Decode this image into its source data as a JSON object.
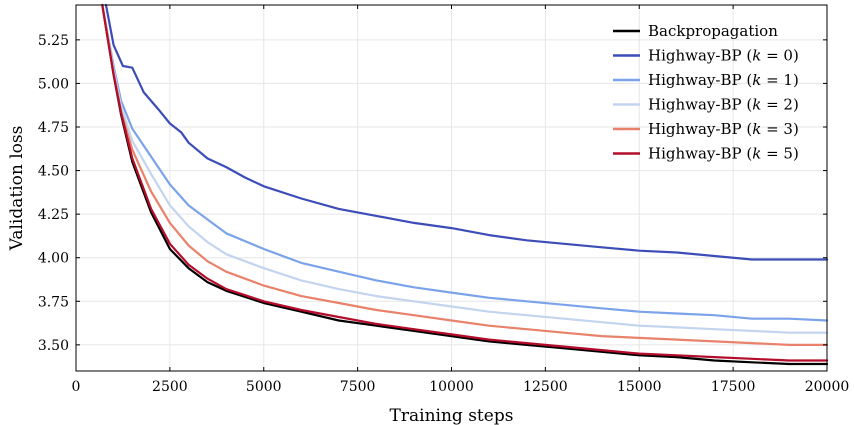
{
  "chart_data": {
    "type": "line",
    "title": "",
    "xlabel": "Training steps",
    "ylabel": "Validation loss",
    "xlim": [
      0,
      20000
    ],
    "ylim": [
      3.35,
      5.45
    ],
    "xticks": [
      0,
      2500,
      5000,
      7500,
      10000,
      12500,
      15000,
      17500,
      20000
    ],
    "yticks": [
      3.5,
      3.75,
      4.0,
      4.25,
      4.5,
      4.75,
      5.0,
      5.25
    ],
    "xtick_labels": [
      "0",
      "2500",
      "5000",
      "7500",
      "10000",
      "12500",
      "15000",
      "17500",
      "20000"
    ],
    "ytick_labels": [
      "3.50",
      "3.75",
      "4.00",
      "4.25",
      "4.50",
      "4.75",
      "5.00",
      "5.25"
    ],
    "grid": true,
    "legend_position": "top-right",
    "series": [
      {
        "name": "Backpropagation",
        "color": "#000000",
        "x": [
          700,
          1000,
          1200,
          1500,
          2000,
          2500,
          3000,
          3500,
          4000,
          5000,
          6000,
          7000,
          8000,
          9000,
          10000,
          11000,
          12000,
          13000,
          14000,
          15000,
          16000,
          17000,
          18000,
          19000,
          20000
        ],
        "y": [
          5.45,
          5.05,
          4.82,
          4.55,
          4.26,
          4.05,
          3.94,
          3.86,
          3.81,
          3.74,
          3.69,
          3.64,
          3.61,
          3.58,
          3.55,
          3.52,
          3.5,
          3.48,
          3.46,
          3.44,
          3.43,
          3.41,
          3.4,
          3.39,
          3.39
        ]
      },
      {
        "name": "Highway-BP (k = 0)",
        "color": "#3c4db8",
        "x": [
          800,
          1000,
          1250,
          1500,
          1800,
          2200,
          2500,
          2800,
          3000,
          3500,
          4000,
          4500,
          5000,
          6000,
          7000,
          8000,
          9000,
          10000,
          11000,
          12000,
          13000,
          14000,
          15000,
          16000,
          17000,
          18000,
          19000,
          20000
        ],
        "y": [
          5.45,
          5.22,
          5.1,
          5.09,
          4.95,
          4.85,
          4.77,
          4.72,
          4.66,
          4.57,
          4.52,
          4.46,
          4.41,
          4.34,
          4.28,
          4.24,
          4.2,
          4.17,
          4.13,
          4.1,
          4.08,
          4.06,
          4.04,
          4.03,
          4.01,
          3.99,
          3.99,
          3.99
        ]
      },
      {
        "name": "Highway-BP (k = 1)",
        "color": "#7ba3ea",
        "x": [
          700,
          1000,
          1200,
          1500,
          2000,
          2500,
          3000,
          3500,
          4000,
          5000,
          6000,
          7000,
          8000,
          9000,
          10000,
          11000,
          12000,
          13000,
          14000,
          15000,
          16000,
          17000,
          18000,
          19000,
          20000
        ],
        "y": [
          5.45,
          5.1,
          4.9,
          4.74,
          4.58,
          4.42,
          4.3,
          4.22,
          4.14,
          4.05,
          3.97,
          3.92,
          3.87,
          3.83,
          3.8,
          3.77,
          3.75,
          3.73,
          3.71,
          3.69,
          3.68,
          3.67,
          3.65,
          3.65,
          3.64
        ]
      },
      {
        "name": "Highway-BP (k = 2)",
        "color": "#c3d4ef",
        "x": [
          700,
          1000,
          1200,
          1500,
          2000,
          2500,
          3000,
          3500,
          4000,
          5000,
          6000,
          7000,
          8000,
          9000,
          10000,
          11000,
          12000,
          13000,
          14000,
          15000,
          16000,
          17000,
          18000,
          19000,
          20000
        ],
        "y": [
          5.45,
          5.08,
          4.87,
          4.67,
          4.48,
          4.3,
          4.18,
          4.09,
          4.02,
          3.94,
          3.87,
          3.82,
          3.78,
          3.75,
          3.72,
          3.69,
          3.67,
          3.65,
          3.63,
          3.61,
          3.6,
          3.59,
          3.58,
          3.57,
          3.57
        ]
      },
      {
        "name": "Highway-BP (k = 3)",
        "color": "#e8826a",
        "x": [
          700,
          1000,
          1200,
          1500,
          2000,
          2500,
          3000,
          3500,
          4000,
          5000,
          6000,
          7000,
          8000,
          9000,
          10000,
          11000,
          12000,
          13000,
          14000,
          15000,
          16000,
          17000,
          18000,
          19000,
          20000
        ],
        "y": [
          5.45,
          5.06,
          4.84,
          4.62,
          4.38,
          4.2,
          4.07,
          3.98,
          3.92,
          3.84,
          3.78,
          3.74,
          3.7,
          3.67,
          3.64,
          3.61,
          3.59,
          3.57,
          3.55,
          3.54,
          3.53,
          3.52,
          3.51,
          3.5,
          3.5
        ]
      },
      {
        "name": "Highway-BP (k = 5)",
        "color": "#b40d2b",
        "x": [
          700,
          1000,
          1200,
          1500,
          2000,
          2500,
          3000,
          3500,
          4000,
          5000,
          6000,
          7000,
          8000,
          9000,
          10000,
          11000,
          12000,
          13000,
          14000,
          15000,
          16000,
          17000,
          18000,
          19000,
          20000
        ],
        "y": [
          5.45,
          5.05,
          4.83,
          4.57,
          4.28,
          4.08,
          3.96,
          3.88,
          3.82,
          3.75,
          3.7,
          3.66,
          3.62,
          3.59,
          3.56,
          3.53,
          3.51,
          3.49,
          3.47,
          3.45,
          3.44,
          3.43,
          3.42,
          3.41,
          3.41
        ]
      }
    ]
  },
  "legend": {
    "labels": [
      {
        "base": "Backpropagation",
        "k": ""
      },
      {
        "base": "Highway-BP (",
        "k": "0"
      },
      {
        "base": "Highway-BP (",
        "k": "1"
      },
      {
        "base": "Highway-BP (",
        "k": "2"
      },
      {
        "base": "Highway-BP (",
        "k": "3"
      },
      {
        "base": "Highway-BP (",
        "k": "5"
      }
    ]
  }
}
